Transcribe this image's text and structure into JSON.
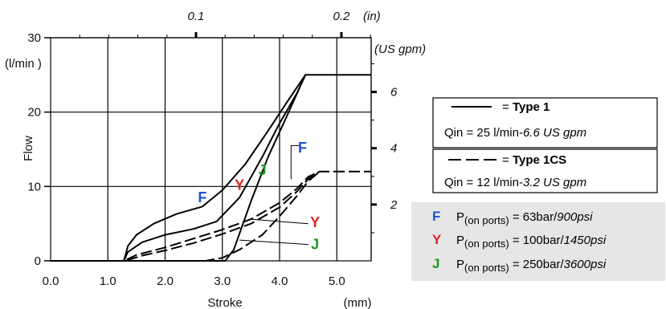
{
  "chart_data": {
    "type": "line",
    "ylabel": "Flow",
    "ylabel_unit": "(l/min )",
    "xlabel": "Stroke",
    "xlabel_unit": "(mm)",
    "x_ticks": [
      "0.0",
      "1.0",
      "2.0",
      "3.0",
      "4.0",
      "5.0"
    ],
    "y_ticks": [
      "0",
      "10",
      "20",
      "30"
    ],
    "xlim": [
      0,
      5.6
    ],
    "ylim": [
      0,
      30
    ],
    "grid": true,
    "top_axis": {
      "ticks": [
        "0.1",
        "0.2"
      ],
      "tick_values_in": [
        0.1,
        0.2
      ],
      "unit": "(in)"
    },
    "right_axis": {
      "ticks": [
        "2",
        "4",
        "6"
      ],
      "tick_values_gpm": [
        2,
        4,
        6
      ],
      "unit": "(US gpm)"
    },
    "legend": [
      {
        "style": "solid",
        "eq": "= ",
        "name": "Type 1",
        "qin_prefix": "Qin = 25 l/min-",
        "qin_alt": "6.6 US gpm"
      },
      {
        "style": "dashed",
        "eq": "= ",
        "name": "Type 1CS",
        "qin_prefix": "Qin = 12 l/min-",
        "qin_alt": "3.2 US gpm"
      }
    ],
    "pressure_legend": [
      {
        "letter": "F",
        "color": "#1f4fd6",
        "label": "P",
        "sub": "(on ports)",
        "value": " = 63bar/",
        "alt": "900psi"
      },
      {
        "letter": "Y",
        "color": "#e02020",
        "label": "P",
        "sub": "(on ports)",
        "value": " = 100bar/",
        "alt": "1450psi"
      },
      {
        "letter": "J",
        "color": "#1a9a1a",
        "label": "P",
        "sub": "(on ports)",
        "value": " = 250bar/",
        "alt": "3600psi"
      }
    ],
    "series": [
      {
        "style": "solid",
        "pressure": "F",
        "x": [
          0,
          1.28,
          1.35,
          1.5,
          1.8,
          2.2,
          2.65,
          3.0,
          3.4,
          3.8,
          4.1,
          4.45,
          5.6
        ],
        "y": [
          0,
          0,
          2,
          3.5,
          5,
          6.3,
          7.3,
          9.5,
          13,
          17.5,
          21,
          25,
          25
        ]
      },
      {
        "style": "solid",
        "pressure": "Y",
        "x": [
          0,
          1.28,
          1.35,
          1.6,
          2.0,
          2.5,
          2.9,
          3.3,
          3.7,
          4.0,
          4.3,
          4.45
        ],
        "y": [
          0,
          0,
          1.2,
          2.5,
          3.5,
          4.3,
          5.3,
          8.5,
          14,
          18.5,
          22.5,
          25
        ]
      },
      {
        "style": "solid",
        "pressure": "J",
        "x": [
          0,
          3.05,
          3.2,
          3.5,
          3.8,
          4.1,
          4.45
        ],
        "y": [
          0,
          0,
          1.5,
          8,
          14,
          19,
          25
        ]
      },
      {
        "style": "dashed",
        "pressure": "F",
        "x": [
          0,
          1.28,
          1.5,
          2.0,
          2.5,
          3.0,
          3.5,
          4.0,
          4.3,
          4.5,
          4.7,
          5.6
        ],
        "y": [
          0,
          0,
          0.8,
          1.8,
          3.0,
          4.2,
          5.6,
          7.8,
          9.7,
          11.3,
          12.0,
          12.0
        ]
      },
      {
        "style": "dashed",
        "pressure": "Y",
        "x": [
          0,
          1.3,
          1.6,
          2.0,
          2.5,
          3.0,
          3.5,
          4.0,
          4.3,
          4.5,
          4.7
        ],
        "y": [
          0,
          0,
          0.7,
          1.4,
          2.4,
          3.6,
          5.0,
          7.2,
          9.3,
          11.0,
          12.0
        ]
      },
      {
        "style": "dashed",
        "pressure": "J",
        "x": [
          0,
          2.7,
          3.0,
          3.3,
          3.7,
          4.0,
          4.3,
          4.5,
          4.7
        ],
        "y": [
          0,
          0,
          0.4,
          1.5,
          3.5,
          6.0,
          8.7,
          10.7,
          12.0
        ]
      }
    ],
    "annotations": [
      {
        "text": "F",
        "color": "#1f4fd6",
        "x": 2.65,
        "y": 8.5
      },
      {
        "text": "Y",
        "color": "#e02020",
        "x": 3.3,
        "y": 10.2
      },
      {
        "text": "J",
        "color": "#1a9a1a",
        "x": 3.7,
        "y": 12.2
      },
      {
        "text": "F",
        "color": "#1f4fd6",
        "x": 4.4,
        "y": 15.2
      },
      {
        "text": "Y",
        "color": "#e02020",
        "x": 4.62,
        "y": 5.2
      },
      {
        "text": "J",
        "color": "#1a9a1a",
        "x": 4.62,
        "y": 2.2
      }
    ]
  }
}
